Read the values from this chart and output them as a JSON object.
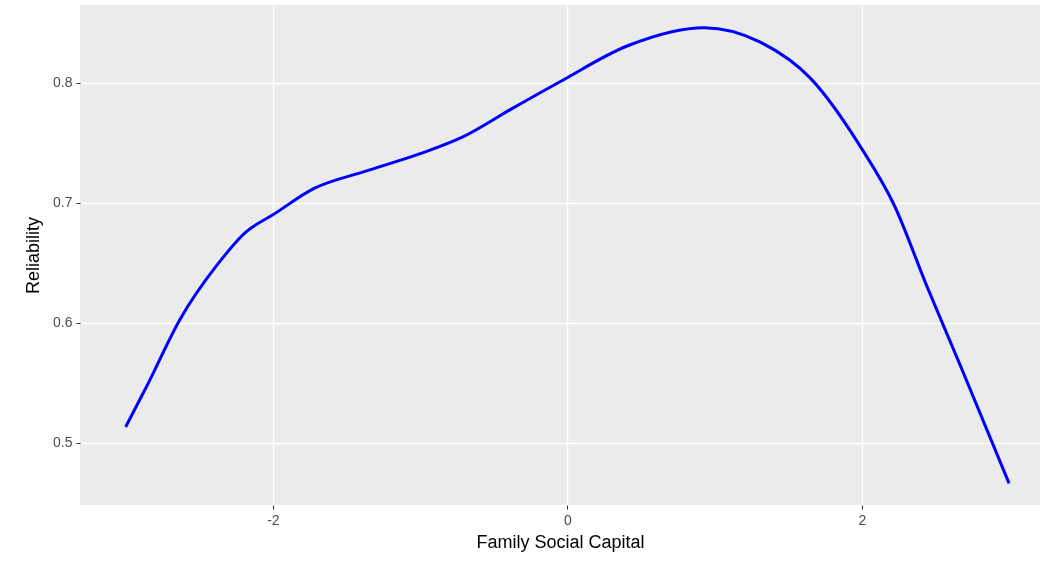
{
  "chart_data": {
    "type": "line",
    "xlabel": "Family Social Capital",
    "ylabel": "Reliability",
    "x": [
      -3,
      -2.857,
      -2.63,
      -2.38,
      -2.18,
      -2.0,
      -1.72,
      -1.38,
      -1.0,
      -0.71,
      -0.37,
      -0.05,
      0.41,
      0.93,
      1.31,
      1.65,
      2.0,
      2.22,
      2.44,
      2.67,
      3.0
    ],
    "series": [
      {
        "color": "#0000ff",
        "values": [
          0.513,
          0.547,
          0.603,
          0.648,
          0.676,
          0.69,
          0.712,
          0.726,
          0.741,
          0.755,
          0.779,
          0.801,
          0.831,
          0.846,
          0.834,
          0.804,
          0.745,
          0.698,
          0.631,
          0.564,
          0.466
        ]
      }
    ],
    "xlim": [
      -3.31,
      3.21
    ],
    "ylim": [
      0.448,
      0.865
    ],
    "xticks": [
      -2,
      0,
      2
    ],
    "yticks": [
      0.5,
      0.6,
      0.7,
      0.8
    ],
    "grid": true,
    "marker": "none",
    "line_style": "solid"
  }
}
